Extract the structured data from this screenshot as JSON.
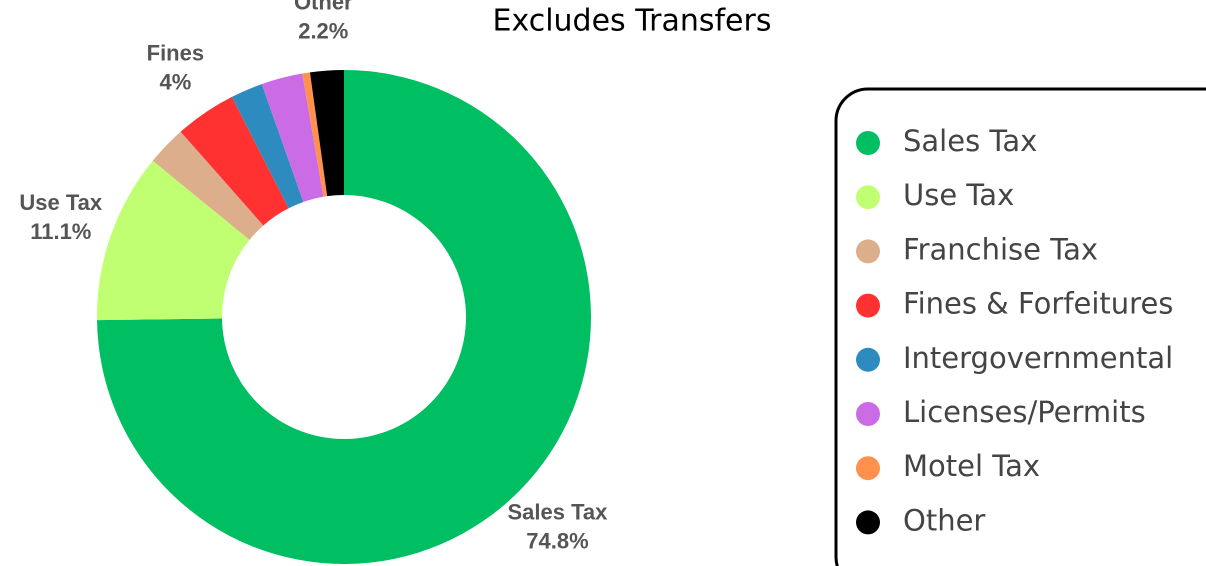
{
  "chart_data": {
    "type": "donut",
    "title": "Excludes Transfers",
    "categories": [
      "Sales Tax",
      "Use Tax",
      "Franchise Tax",
      "Fines & Forfeitures",
      "Intergovernmental",
      "Licenses/Permits",
      "Motel Tax",
      "Other"
    ],
    "values": [
      74.8,
      11.1,
      2.6,
      4,
      2.1,
      2.7,
      0.5,
      2.2
    ],
    "value_labels": [
      "74.8%",
      "11.1%",
      null,
      "4%",
      null,
      null,
      null,
      "2.2%"
    ],
    "label_names": [
      "Sales Tax",
      "Use Tax",
      null,
      "Fines",
      null,
      null,
      null,
      "Other"
    ],
    "colors": [
      "#00bf63",
      "#c1ff72",
      "#dcae8c",
      "#ff3131",
      "#2e8bc0",
      "#cb6ce6",
      "#ff914d",
      "#000000"
    ],
    "legend": "right"
  }
}
